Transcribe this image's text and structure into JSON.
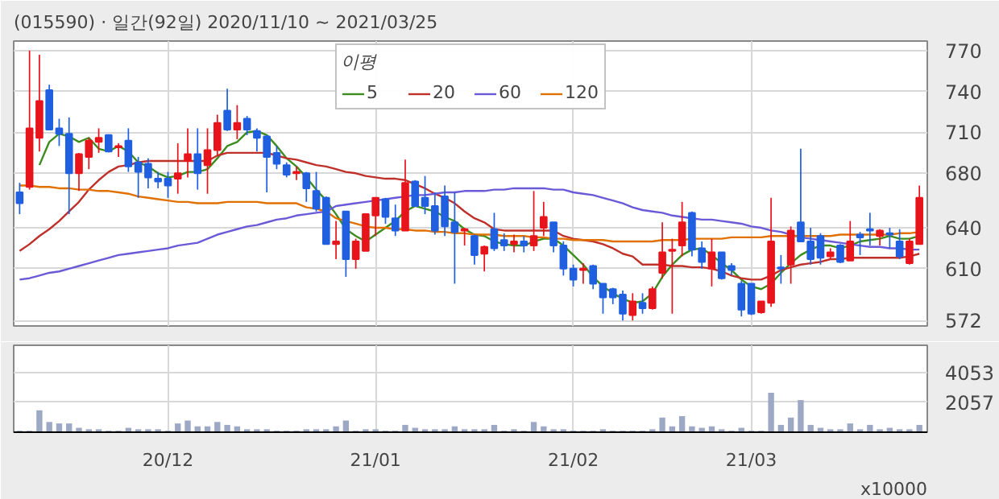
{
  "chart_data": [
    {
      "type": "candlestick",
      "title": "(015590) · 일간(92일) 2020/11/10 ~ 2021/03/25",
      "legend_title": "이평",
      "categories": [
        null,
        null,
        null,
        null,
        null,
        null,
        null,
        null,
        null,
        null,
        null,
        null,
        null,
        null,
        null,
        null,
        null,
        null,
        null,
        null,
        null,
        null,
        null,
        null,
        null,
        null,
        null,
        null,
        null,
        null,
        null,
        null,
        null,
        null,
        null,
        null,
        null,
        null,
        null,
        null,
        null,
        null,
        null,
        null,
        null,
        null,
        null,
        null,
        null,
        null,
        null,
        null,
        null,
        null,
        null,
        null,
        null,
        null,
        null,
        null,
        null,
        null,
        null,
        null,
        null,
        null,
        null,
        null,
        null,
        null,
        null,
        null,
        null,
        null,
        null,
        null,
        null,
        null,
        null,
        null,
        null,
        null,
        null,
        null,
        null,
        null,
        null,
        null,
        null,
        null,
        null,
        null
      ],
      "ohlc": [
        [
          666,
          673,
          650,
          658
        ],
        [
          670,
          770,
          668,
          713
        ],
        [
          706,
          767,
          696,
          733
        ],
        [
          741,
          745,
          712,
          712
        ],
        [
          713,
          720,
          700,
          709
        ],
        [
          709,
          721,
          650,
          680
        ],
        [
          680,
          695,
          667,
          694
        ],
        [
          692,
          706,
          683,
          704
        ],
        [
          703,
          713,
          695,
          706
        ],
        [
          708,
          708,
          696,
          696
        ],
        [
          699,
          702,
          692,
          700
        ],
        [
          704,
          713,
          681,
          685
        ],
        [
          688,
          692,
          662,
          681
        ],
        [
          687,
          691,
          669,
          677
        ],
        [
          676,
          681,
          669,
          674
        ],
        [
          676,
          681,
          662,
          671
        ],
        [
          676,
          702,
          665,
          680
        ],
        [
          689,
          713,
          677,
          694
        ],
        [
          694,
          713,
          668,
          680
        ],
        [
          686,
          713,
          665,
          697
        ],
        [
          697,
          723,
          693,
          717
        ],
        [
          726,
          742,
          711,
          712
        ],
        [
          712,
          730,
          705,
          717
        ],
        [
          720,
          722,
          708,
          712
        ],
        [
          711,
          713,
          696,
          706
        ],
        [
          707,
          708,
          666,
          692
        ],
        [
          695,
          700,
          683,
          687
        ],
        [
          686,
          688,
          677,
          679
        ],
        [
          680,
          685,
          675,
          681
        ],
        [
          680,
          681,
          659,
          669
        ],
        [
          667,
          681,
          652,
          654
        ],
        [
          662,
          663,
          628,
          628
        ],
        [
          628,
          645,
          617,
          630
        ],
        [
          652,
          652,
          604,
          617
        ],
        [
          617,
          632,
          610,
          630
        ],
        [
          623,
          650,
          623,
          650
        ],
        [
          649,
          662,
          634,
          662
        ],
        [
          661,
          662,
          643,
          648
        ],
        [
          647,
          657,
          634,
          638
        ],
        [
          638,
          690,
          638,
          673
        ],
        [
          674,
          675,
          656,
          656
        ],
        [
          662,
          678,
          650,
          656
        ],
        [
          656,
          666,
          635,
          638
        ],
        [
          663,
          671,
          634,
          641
        ],
        [
          644,
          666,
          599,
          637
        ],
        [
          638,
          640,
          627,
          639
        ],
        [
          634,
          635,
          613,
          620
        ],
        [
          621,
          627,
          608,
          626
        ],
        [
          639,
          651,
          623,
          625
        ],
        [
          631,
          636,
          623,
          627
        ],
        [
          628,
          635,
          622,
          630
        ],
        [
          630,
          634,
          622,
          627
        ],
        [
          627,
          667,
          623,
          634
        ],
        [
          640,
          659,
          634,
          648
        ],
        [
          644,
          644,
          622,
          627
        ],
        [
          627,
          630,
          605,
          610
        ],
        [
          610,
          613,
          597,
          602
        ],
        [
          609,
          614,
          599,
          610
        ],
        [
          612,
          613,
          595,
          599
        ],
        [
          599,
          599,
          577,
          589
        ],
        [
          595,
          596,
          584,
          589
        ],
        [
          591,
          594,
          572,
          577
        ],
        [
          576,
          592,
          572,
          586
        ],
        [
          585,
          592,
          577,
          581
        ],
        [
          581,
          597,
          580,
          595
        ],
        [
          607,
          644,
          603,
          622
        ],
        [
          623,
          632,
          577,
          624
        ],
        [
          627,
          659,
          619,
          644
        ],
        [
          651,
          652,
          619,
          624
        ],
        [
          625,
          630,
          610,
          615
        ],
        [
          610,
          632,
          597,
          622
        ],
        [
          622,
          622,
          602,
          603
        ],
        [
          612,
          614,
          605,
          609
        ],
        [
          599,
          601,
          575,
          580
        ],
        [
          599,
          599,
          576,
          577
        ],
        [
          578,
          586,
          577,
          586
        ],
        [
          585,
          662,
          582,
          630
        ],
        [
          611,
          620,
          599,
          610
        ],
        [
          613,
          641,
          599,
          638
        ],
        [
          644,
          698,
          630,
          630
        ],
        [
          630,
          640,
          613,
          617
        ],
        [
          634,
          636,
          613,
          618
        ],
        [
          619,
          625,
          617,
          622
        ],
        [
          627,
          628,
          614,
          615
        ],
        [
          616,
          645,
          616,
          630
        ],
        [
          635,
          637,
          620,
          633
        ],
        [
          639,
          651,
          627,
          638
        ],
        [
          634,
          639,
          627,
          638
        ],
        [
          636,
          640,
          625,
          635
        ],
        [
          630,
          639,
          617,
          619
        ],
        [
          614,
          632,
          613,
          630
        ],
        [
          628,
          671,
          628,
          662
        ]
      ],
      "series": [
        {
          "type": "line",
          "name": "5",
          "color": "#3c8c1e",
          "values": [
            null,
            null,
            686,
            703,
            709,
            707,
            703,
            706,
            698,
            696,
            700,
            696,
            688,
            685,
            680,
            677,
            678,
            681,
            681,
            683,
            691,
            700,
            703,
            710,
            711,
            708,
            700,
            691,
            685,
            677,
            668,
            660,
            650,
            639,
            634,
            630,
            635,
            640,
            645,
            652,
            656,
            654,
            652,
            648,
            645,
            639,
            635,
            634,
            630,
            628,
            627,
            627,
            630,
            632,
            632,
            627,
            620,
            613,
            604,
            597,
            592,
            588,
            585,
            586,
            592,
            604,
            613,
            620,
            624,
            625,
            620,
            614,
            609,
            602,
            597,
            595,
            599,
            607,
            614,
            620,
            624,
            627,
            627,
            625,
            627,
            630,
            631,
            632,
            634,
            632,
            632,
            634
          ]
        },
        {
          "type": "line",
          "name": "20",
          "color": "#c0302a",
          "values": [
            623,
            628,
            634,
            639,
            645,
            652,
            659,
            668,
            675,
            681,
            685,
            686,
            688,
            689,
            689,
            689,
            689,
            689,
            689,
            689,
            693,
            695,
            695,
            695,
            695,
            695,
            693,
            691,
            690,
            688,
            686,
            685,
            683,
            681,
            680,
            678,
            677,
            676,
            676,
            675,
            672,
            669,
            665,
            662,
            658,
            652,
            647,
            644,
            639,
            638,
            638,
            638,
            638,
            638,
            638,
            634,
            632,
            631,
            630,
            628,
            625,
            621,
            619,
            613,
            613,
            613,
            612,
            612,
            611,
            611,
            610,
            608,
            605,
            603,
            602,
            602,
            605,
            609,
            611,
            613,
            614,
            615,
            617,
            617,
            618,
            618,
            618,
            618,
            618,
            618,
            619,
            621
          ]
        },
        {
          "type": "line",
          "name": "60",
          "color": "#6a5ad8",
          "values": [
            602,
            603,
            605,
            607,
            608,
            610,
            612,
            614,
            616,
            618,
            620,
            621,
            622,
            623,
            624,
            625,
            627,
            628,
            629,
            632,
            635,
            637,
            639,
            641,
            642,
            644,
            646,
            647,
            649,
            650,
            651,
            652,
            656,
            657,
            658,
            659,
            660,
            661,
            662,
            663,
            664,
            664,
            665,
            666,
            666,
            667,
            667,
            667,
            668,
            668,
            669,
            669,
            669,
            669,
            668,
            668,
            666,
            665,
            664,
            662,
            660,
            658,
            655,
            653,
            652,
            651,
            649,
            648,
            647,
            646,
            646,
            645,
            644,
            643,
            641,
            640,
            638,
            637,
            635,
            633,
            632,
            631,
            630,
            629,
            628,
            627,
            626,
            626,
            625,
            625,
            624,
            624
          ]
        },
        {
          "type": "line",
          "name": "120",
          "color": "#e07000",
          "values": [
            671,
            671,
            670,
            670,
            669,
            669,
            668,
            668,
            667,
            667,
            666,
            665,
            663,
            662,
            661,
            660,
            659,
            659,
            658,
            658,
            658,
            659,
            659,
            659,
            659,
            658,
            658,
            658,
            658,
            655,
            654,
            652,
            647,
            645,
            643,
            641,
            640,
            640,
            639,
            639,
            638,
            638,
            637,
            637,
            636,
            636,
            635,
            635,
            635,
            634,
            634,
            634,
            633,
            633,
            632,
            632,
            631,
            631,
            631,
            631,
            630,
            630,
            630,
            630,
            630,
            631,
            631,
            631,
            632,
            632,
            632,
            632,
            633,
            633,
            633,
            633,
            634,
            634,
            634,
            634,
            634,
            634,
            634,
            635,
            635,
            635,
            635,
            635,
            635,
            636,
            636,
            637
          ]
        }
      ],
      "ylim": [
        568,
        777
      ],
      "yticks": [
        572,
        610,
        640,
        680,
        710,
        740,
        770
      ],
      "grid": true,
      "legend": "top",
      "tick_labels": "y"
    },
    {
      "type": "bar",
      "categories": [
        null,
        null,
        null,
        null,
        null,
        null,
        null,
        null,
        null,
        null,
        null,
        null,
        null,
        null,
        null,
        "20/12",
        null,
        null,
        null,
        null,
        null,
        null,
        null,
        null,
        null,
        null,
        null,
        null,
        null,
        null,
        null,
        null,
        null,
        null,
        null,
        null,
        "21/01",
        null,
        null,
        null,
        null,
        null,
        null,
        null,
        null,
        null,
        null,
        null,
        null,
        null,
        null,
        null,
        null,
        null,
        null,
        null,
        "21/02",
        null,
        null,
        null,
        null,
        null,
        null,
        null,
        null,
        null,
        null,
        null,
        null,
        null,
        null,
        null,
        null,
        null,
        "21/03",
        null,
        null,
        null,
        null,
        null,
        null,
        null,
        null,
        null,
        null,
        null,
        null,
        null,
        null,
        null,
        null,
        null
      ],
      "values": [
        100,
        100,
        1500,
        700,
        600,
        600,
        300,
        200,
        200,
        100,
        100,
        300,
        200,
        200,
        200,
        100,
        600,
        800,
        400,
        400,
        700,
        500,
        400,
        200,
        200,
        200,
        100,
        100,
        100,
        200,
        200,
        200,
        400,
        800,
        100,
        200,
        200,
        100,
        100,
        500,
        300,
        200,
        200,
        200,
        400,
        200,
        200,
        200,
        500,
        100,
        200,
        100,
        700,
        400,
        200,
        200,
        100,
        100,
        100,
        200,
        100,
        100,
        100,
        100,
        200,
        1000,
        400,
        1100,
        400,
        300,
        400,
        200,
        100,
        300,
        100,
        100,
        2700,
        500,
        1000,
        2200,
        500,
        300,
        200,
        200,
        600,
        200,
        500,
        200,
        300,
        200,
        200,
        500
      ],
      "color": "#9ca8c4",
      "ylim": [
        0,
        5955
      ],
      "yticks": [
        2057,
        4053
      ],
      "grid": true,
      "annotations": [
        "x10000"
      ]
    }
  ]
}
